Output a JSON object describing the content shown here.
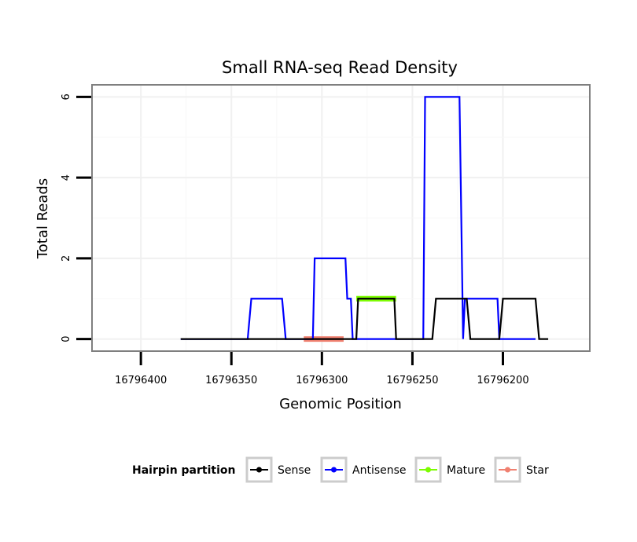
{
  "chart_data": {
    "type": "line",
    "title": "Small RNA-seq Read Density",
    "xlabel": "Genomic Position",
    "ylabel": "Total Reads",
    "x_reversed": true,
    "xlim": [
      16796427,
      16796152
    ],
    "ylim": [
      -0.3,
      6.3
    ],
    "x_ticks": [
      16796400,
      16796350,
      16796300,
      16796250,
      16796200
    ],
    "x_tick_labels": [
      "16796400",
      "16796350",
      "16796300",
      "16796250",
      "16796200"
    ],
    "y_ticks": [
      0,
      2,
      4,
      6
    ],
    "y_tick_labels": [
      "0",
      "2",
      "4",
      "6"
    ],
    "grid": true,
    "legend_title": "Hairpin partition",
    "legend_position": "bottom",
    "series": [
      {
        "name": "Sense",
        "color": "#000000",
        "style": "line",
        "points": [
          [
            16796378,
            0
          ],
          [
            16796281,
            0
          ],
          [
            16796280,
            1
          ],
          [
            16796260,
            1
          ],
          [
            16796259,
            0
          ],
          [
            16796239,
            0
          ],
          [
            16796237,
            1
          ],
          [
            16796220,
            1
          ],
          [
            16796218,
            0
          ],
          [
            16796202,
            0
          ],
          [
            16796200,
            1
          ],
          [
            16796182,
            1
          ],
          [
            16796180,
            0
          ],
          [
            16796175,
            0
          ]
        ]
      },
      {
        "name": "Antisense",
        "color": "#0000ff",
        "style": "line",
        "points": [
          [
            16796378,
            0
          ],
          [
            16796341,
            0
          ],
          [
            16796339,
            1
          ],
          [
            16796322,
            1
          ],
          [
            16796320,
            0
          ],
          [
            16796305,
            0
          ],
          [
            16796304,
            2
          ],
          [
            16796287,
            2
          ],
          [
            16796286,
            1
          ],
          [
            16796284,
            1
          ],
          [
            16796283,
            0
          ],
          [
            16796244,
            0
          ],
          [
            16796243,
            6
          ],
          [
            16796224,
            6
          ],
          [
            16796222,
            0
          ],
          [
            16796221,
            1
          ],
          [
            16796203,
            1
          ],
          [
            16796202,
            0
          ],
          [
            16796182,
            0
          ]
        ]
      },
      {
        "name": "Mature",
        "color": "#7cfc00",
        "style": "segment",
        "points": [
          [
            16796281,
            1
          ],
          [
            16796259,
            1
          ]
        ]
      },
      {
        "name": "Star",
        "color": "#f08070",
        "style": "segment",
        "points": [
          [
            16796310,
            0
          ],
          [
            16796288,
            0
          ]
        ]
      }
    ]
  }
}
